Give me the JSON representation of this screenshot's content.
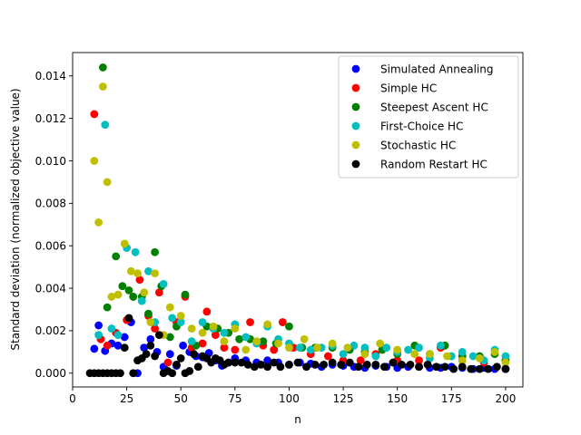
{
  "chart_data": {
    "type": "scatter",
    "title": "",
    "xlabel": "n",
    "ylabel": "Standard deviation (normalized objective value)",
    "xlim": [
      0,
      208
    ],
    "ylim": [
      -0.00065,
      0.0151
    ],
    "xticks": [
      0,
      25,
      50,
      75,
      100,
      125,
      150,
      175,
      200
    ],
    "yticks": [
      0.0,
      0.002,
      0.004,
      0.006,
      0.008,
      0.01,
      0.012,
      0.014
    ],
    "xtick_labels": [
      "0",
      "25",
      "50",
      "75",
      "100",
      "125",
      "150",
      "175",
      "200"
    ],
    "ytick_labels": [
      "0.000",
      "0.002",
      "0.004",
      "0.006",
      "0.008",
      "0.010",
      "0.012",
      "0.014"
    ],
    "grid": false,
    "legend_position": "top-right",
    "series": [
      {
        "name": "Simulated Annealing",
        "color": "#0000ff",
        "points": [
          [
            10,
            0.00115
          ],
          [
            12,
            0.00225
          ],
          [
            15,
            0.00105
          ],
          [
            18,
            0.0014
          ],
          [
            21,
            0.0013
          ],
          [
            24,
            0.0017
          ],
          [
            27,
            0.0024
          ],
          [
            30,
            0.0
          ],
          [
            33,
            0.0012
          ],
          [
            36,
            0.0016
          ],
          [
            39,
            0.001
          ],
          [
            42,
            0.0003
          ],
          [
            45,
            0.0009
          ],
          [
            48,
            0.00035
          ],
          [
            51,
            0.0013
          ],
          [
            54,
            0.001
          ],
          [
            57,
            0.0008
          ],
          [
            60,
            0.00075
          ],
          [
            63,
            0.00095
          ],
          [
            66,
            0.0006
          ],
          [
            69,
            0.00035
          ],
          [
            72,
            0.0005
          ],
          [
            75,
            0.0007
          ],
          [
            80,
            0.0006
          ],
          [
            85,
            0.0005
          ],
          [
            90,
            0.0006
          ],
          [
            95,
            0.0005
          ],
          [
            100,
            0.0004
          ],
          [
            105,
            0.0005
          ],
          [
            110,
            0.00045
          ],
          [
            115,
            0.0003
          ],
          [
            120,
            0.0004
          ],
          [
            125,
            0.00035
          ],
          [
            130,
            0.0003
          ],
          [
            135,
            0.00025
          ],
          [
            140,
            0.00035
          ],
          [
            145,
            0.0003
          ],
          [
            150,
            0.00025
          ],
          [
            155,
            0.0003
          ],
          [
            160,
            0.0003
          ],
          [
            165,
            0.00025
          ],
          [
            170,
            0.00025
          ],
          [
            175,
            0.0003
          ],
          [
            180,
            0.00025
          ],
          [
            185,
            0.0002
          ],
          [
            190,
            0.00025
          ],
          [
            195,
            0.0002
          ],
          [
            200,
            0.0002
          ]
        ]
      },
      {
        "name": "Simple HC",
        "color": "#ff0000",
        "points": [
          [
            10,
            0.0122
          ],
          [
            13,
            0.0016
          ],
          [
            16,
            0.0013
          ],
          [
            20,
            0.0019
          ],
          [
            25,
            0.0025
          ],
          [
            28,
            0.0036
          ],
          [
            31,
            0.0044
          ],
          [
            35,
            0.0027
          ],
          [
            38,
            0.0021
          ],
          [
            40,
            0.0038
          ],
          [
            44,
            0.0005
          ],
          [
            48,
            0.0024
          ],
          [
            52,
            0.0036
          ],
          [
            55,
            0.0012
          ],
          [
            60,
            0.0014
          ],
          [
            62,
            0.0029
          ],
          [
            66,
            0.0018
          ],
          [
            70,
            0.0012
          ],
          [
            75,
            0.0011
          ],
          [
            82,
            0.0024
          ],
          [
            88,
            0.0013
          ],
          [
            93,
            0.0011
          ],
          [
            97,
            0.0024
          ],
          [
            102,
            0.0012
          ],
          [
            110,
            0.0009
          ],
          [
            118,
            0.0008
          ],
          [
            125,
            0.0006
          ],
          [
            133,
            0.0006
          ],
          [
            140,
            0.0009
          ],
          [
            150,
            0.0006
          ],
          [
            160,
            0.0006
          ],
          [
            170,
            0.0012
          ],
          [
            180,
            0.0006
          ],
          [
            190,
            0.0005
          ],
          [
            200,
            0.0006
          ]
        ]
      },
      {
        "name": "Steepest Ascent HC",
        "color": "#008000",
        "points": [
          [
            14,
            0.0144
          ],
          [
            16,
            0.0031
          ],
          [
            20,
            0.0055
          ],
          [
            23,
            0.0041
          ],
          [
            26,
            0.0039
          ],
          [
            28,
            0.0036
          ],
          [
            32,
            0.0036
          ],
          [
            35,
            0.0028
          ],
          [
            38,
            0.0057
          ],
          [
            41,
            0.0041
          ],
          [
            45,
            0.0017
          ],
          [
            48,
            0.0022
          ],
          [
            52,
            0.0037
          ],
          [
            57,
            0.0013
          ],
          [
            62,
            0.0022
          ],
          [
            67,
            0.0021
          ],
          [
            72,
            0.0019
          ],
          [
            77,
            0.0016
          ],
          [
            82,
            0.0016
          ],
          [
            88,
            0.0015
          ],
          [
            94,
            0.0014
          ],
          [
            100,
            0.0022
          ],
          [
            106,
            0.0012
          ],
          [
            112,
            0.0012
          ],
          [
            120,
            0.0012
          ],
          [
            128,
            0.0011
          ],
          [
            135,
            0.001
          ],
          [
            143,
            0.0011
          ],
          [
            150,
            0.0009
          ],
          [
            158,
            0.0013
          ],
          [
            165,
            0.0009
          ],
          [
            172,
            0.0013
          ],
          [
            180,
            0.0008
          ],
          [
            188,
            0.0008
          ],
          [
            195,
            0.0009
          ],
          [
            200,
            0.0006
          ]
        ]
      },
      {
        "name": "First-Choice HC",
        "color": "#00bfbf",
        "points": [
          [
            12,
            0.0018
          ],
          [
            15,
            0.0117
          ],
          [
            18,
            0.0021
          ],
          [
            21,
            0.0018
          ],
          [
            25,
            0.0059
          ],
          [
            29,
            0.0057
          ],
          [
            32,
            0.0034
          ],
          [
            35,
            0.0048
          ],
          [
            38,
            0.0024
          ],
          [
            42,
            0.0042
          ],
          [
            46,
            0.0026
          ],
          [
            50,
            0.0024
          ],
          [
            55,
            0.0015
          ],
          [
            60,
            0.0024
          ],
          [
            65,
            0.0021
          ],
          [
            70,
            0.0019
          ],
          [
            75,
            0.0023
          ],
          [
            80,
            0.0017
          ],
          [
            85,
            0.0014
          ],
          [
            90,
            0.0022
          ],
          [
            95,
            0.0016
          ],
          [
            100,
            0.0014
          ],
          [
            105,
            0.0012
          ],
          [
            110,
            0.0011
          ],
          [
            115,
            0.0012
          ],
          [
            120,
            0.0013
          ],
          [
            125,
            0.0009
          ],
          [
            130,
            0.0013
          ],
          [
            135,
            0.0012
          ],
          [
            140,
            0.0008
          ],
          [
            145,
            0.0012
          ],
          [
            150,
            0.001
          ],
          [
            155,
            0.0011
          ],
          [
            160,
            0.0012
          ],
          [
            165,
            0.0007
          ],
          [
            170,
            0.0013
          ],
          [
            175,
            0.0008
          ],
          [
            180,
            0.001
          ],
          [
            185,
            0.0008
          ],
          [
            190,
            0.0006
          ],
          [
            195,
            0.0011
          ],
          [
            200,
            0.0008
          ]
        ]
      },
      {
        "name": "Stochastic HC",
        "color": "#bfbf00",
        "points": [
          [
            10,
            0.01
          ],
          [
            12,
            0.0071
          ],
          [
            14,
            0.0135
          ],
          [
            16,
            0.009
          ],
          [
            18,
            0.0036
          ],
          [
            21,
            0.0037
          ],
          [
            24,
            0.0061
          ],
          [
            27,
            0.0048
          ],
          [
            30,
            0.0047
          ],
          [
            33,
            0.0038
          ],
          [
            36,
            0.0024
          ],
          [
            38,
            0.0047
          ],
          [
            42,
            0.0018
          ],
          [
            45,
            0.0031
          ],
          [
            50,
            0.0027
          ],
          [
            55,
            0.0021
          ],
          [
            60,
            0.0019
          ],
          [
            65,
            0.0022
          ],
          [
            70,
            0.0015
          ],
          [
            75,
            0.0021
          ],
          [
            80,
            0.0011
          ],
          [
            85,
            0.0015
          ],
          [
            90,
            0.0023
          ],
          [
            95,
            0.0014
          ],
          [
            100,
            0.0012
          ],
          [
            107,
            0.0016
          ],
          [
            113,
            0.0012
          ],
          [
            120,
            0.0014
          ],
          [
            127,
            0.0012
          ],
          [
            135,
            0.0009
          ],
          [
            142,
            0.0014
          ],
          [
            150,
            0.0011
          ],
          [
            158,
            0.0009
          ],
          [
            165,
            0.0009
          ],
          [
            173,
            0.0008
          ],
          [
            180,
            0.0006
          ],
          [
            188,
            0.0007
          ],
          [
            195,
            0.001
          ],
          [
            200,
            0.0005
          ]
        ]
      },
      {
        "name": "Random Restart HC",
        "color": "#000000",
        "points": [
          [
            8,
            0.0
          ],
          [
            10,
            0.0
          ],
          [
            12,
            0.0
          ],
          [
            14,
            0.0
          ],
          [
            16,
            0.0
          ],
          [
            18,
            0.0
          ],
          [
            20,
            0.0
          ],
          [
            22,
            0.0
          ],
          [
            24,
            0.0012
          ],
          [
            26,
            0.0026
          ],
          [
            28,
            0.0
          ],
          [
            30,
            0.0006
          ],
          [
            32,
            0.0007
          ],
          [
            34,
            0.0009
          ],
          [
            36,
            0.0013
          ],
          [
            38,
            0.0008
          ],
          [
            40,
            0.0018
          ],
          [
            42,
            0.0
          ],
          [
            44,
            0.0001
          ],
          [
            46,
            0.0
          ],
          [
            48,
            0.0004
          ],
          [
            50,
            0.0007
          ],
          [
            52,
            0.0
          ],
          [
            54,
            0.0001
          ],
          [
            56,
            0.0009
          ],
          [
            58,
            0.0003
          ],
          [
            60,
            0.0008
          ],
          [
            62,
            0.0007
          ],
          [
            64,
            0.0005
          ],
          [
            66,
            0.0007
          ],
          [
            68,
            0.0006
          ],
          [
            70,
            0.0004
          ],
          [
            72,
            0.0005
          ],
          [
            75,
            0.0005
          ],
          [
            78,
            0.0005
          ],
          [
            81,
            0.0004
          ],
          [
            84,
            0.0003
          ],
          [
            87,
            0.0004
          ],
          [
            90,
            0.0003
          ],
          [
            93,
            0.0005
          ],
          [
            96,
            0.0003
          ],
          [
            100,
            0.0004
          ],
          [
            104,
            0.0005
          ],
          [
            108,
            0.0003
          ],
          [
            112,
            0.0004
          ],
          [
            116,
            0.0004
          ],
          [
            120,
            0.0005
          ],
          [
            124,
            0.0004
          ],
          [
            128,
            0.0005
          ],
          [
            132,
            0.0003
          ],
          [
            136,
            0.0004
          ],
          [
            140,
            0.0004
          ],
          [
            144,
            0.0003
          ],
          [
            148,
            0.0005
          ],
          [
            152,
            0.0004
          ],
          [
            156,
            0.0004
          ],
          [
            160,
            0.0003
          ],
          [
            164,
            0.0004
          ],
          [
            168,
            0.0003
          ],
          [
            172,
            0.0003
          ],
          [
            176,
            0.0002
          ],
          [
            180,
            0.0003
          ],
          [
            184,
            0.0002
          ],
          [
            188,
            0.0002
          ],
          [
            192,
            0.0002
          ],
          [
            196,
            0.0003
          ],
          [
            200,
            0.0002
          ]
        ]
      }
    ]
  }
}
